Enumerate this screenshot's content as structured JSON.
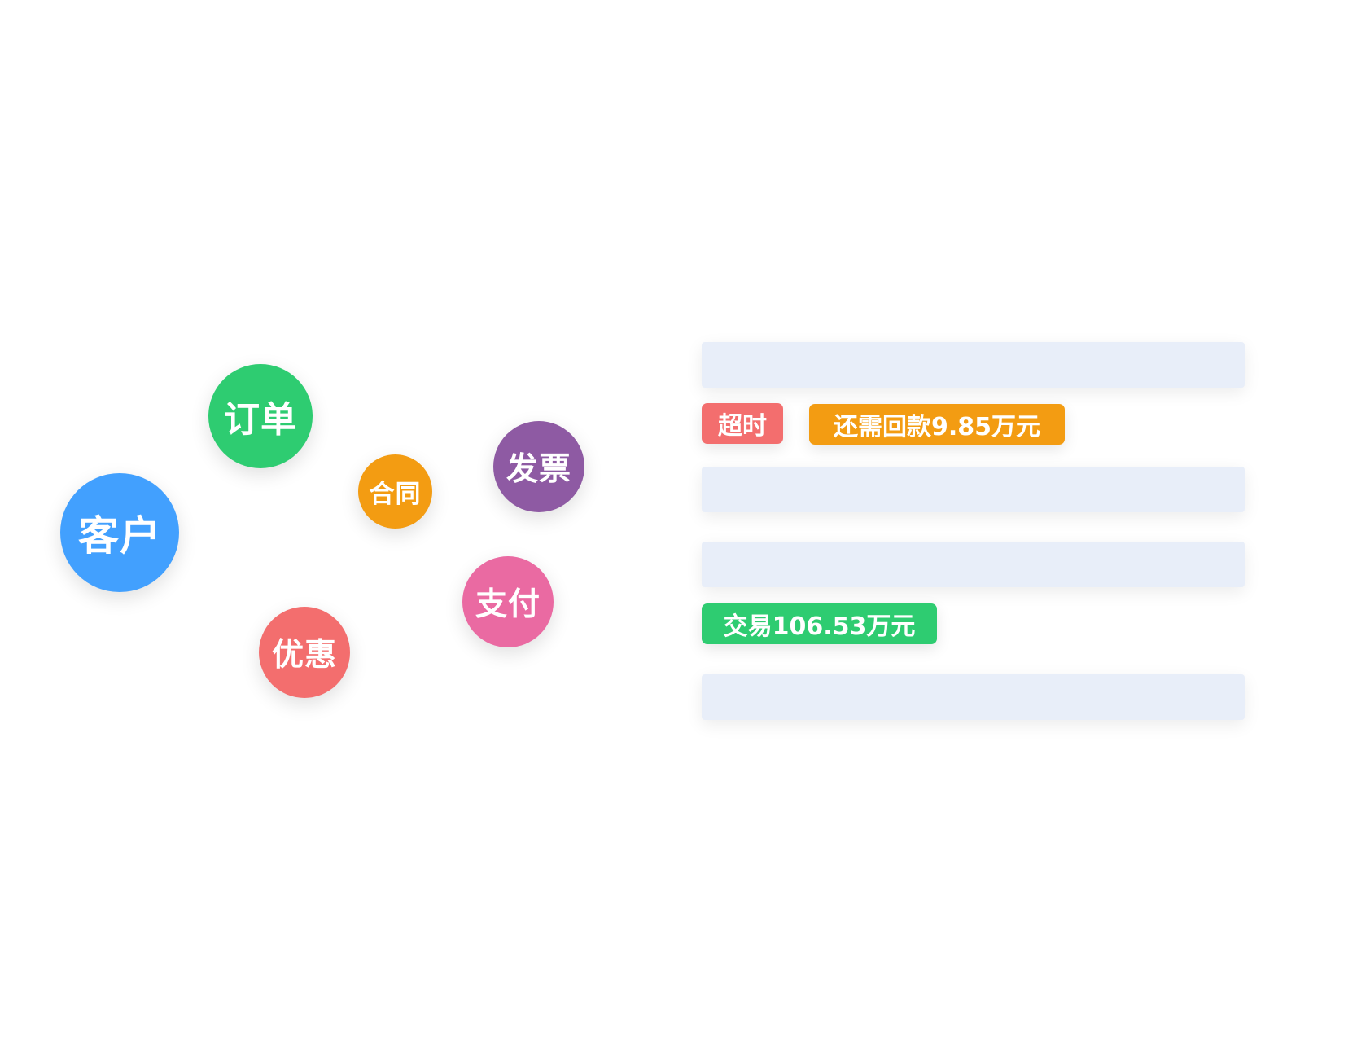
{
  "bubbles": [
    {
      "label": "客户",
      "color": "#42a0fe"
    },
    {
      "label": "订单",
      "color": "#2ecc71"
    },
    {
      "label": "合同",
      "color": "#f39c12"
    },
    {
      "label": "发票",
      "color": "#8e5aa3"
    },
    {
      "label": "支付",
      "color": "#ea6aa2"
    },
    {
      "label": "优惠",
      "color": "#f36e6e"
    }
  ],
  "tags": {
    "overdue": {
      "label": "超时",
      "color": "#f36e6e"
    },
    "remaining": {
      "label": "还需回款9.85万元",
      "color": "#f39c12"
    },
    "transaction": {
      "label": "交易106.53万元",
      "color": "#2ecc71"
    }
  },
  "placeholder_color": "#e8eef9"
}
